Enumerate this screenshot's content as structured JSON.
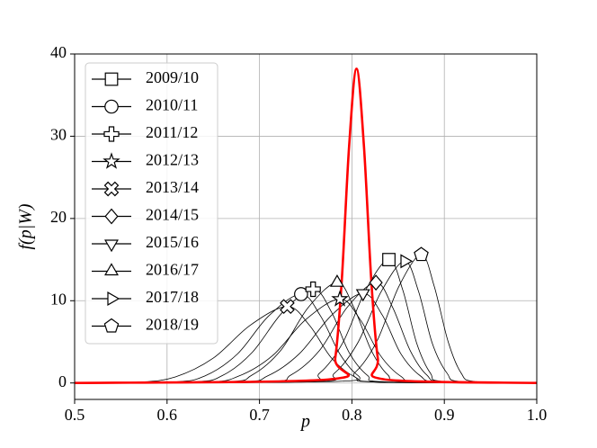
{
  "chart_data": {
    "type": "line",
    "xlabel": "p",
    "ylabel": "f(p|W)",
    "xlim": [
      0.5,
      1.0
    ],
    "ylim": [
      -2,
      40
    ],
    "xticks": [
      0.5,
      0.6,
      0.7,
      0.8,
      0.9,
      {
        "value": 1.0,
        "label": "1.0"
      }
    ],
    "yticks": [
      0,
      10,
      20,
      30,
      40
    ],
    "grid": true,
    "legend": "upper left",
    "series": [
      {
        "name": "2009/10",
        "color": "#000000",
        "marker": "square",
        "x": [
          0.5,
          0.74,
          0.765,
          0.79,
          0.815,
          0.84,
          0.855,
          0.87,
          0.885,
          0.9,
          1.0
        ],
        "values": [
          0,
          0.17,
          1.19,
          4.87,
          11.32,
          15.0,
          11.32,
          4.87,
          1.19,
          0.17,
          0
        ]
      },
      {
        "name": "2010/11",
        "color": "#000000",
        "marker": "circle",
        "x": [
          0.5,
          0.606,
          0.641,
          0.676,
          0.71,
          0.745,
          0.766,
          0.787,
          0.807,
          0.828,
          1.0
        ],
        "values": [
          0,
          0.12,
          0.86,
          3.51,
          8.15,
          10.8,
          8.15,
          3.51,
          0.86,
          0.12,
          0
        ]
      },
      {
        "name": "2011/12",
        "color": "#000000",
        "marker": "plus",
        "x": [
          0.5,
          0.627,
          0.66,
          0.692,
          0.725,
          0.758,
          0.778,
          0.797,
          0.817,
          0.837,
          1.0
        ],
        "values": [
          0,
          0.13,
          0.91,
          3.7,
          8.6,
          11.4,
          8.6,
          3.7,
          0.91,
          0.13,
          0
        ]
      },
      {
        "name": "2012/13",
        "color": "#000000",
        "marker": "star",
        "x": [
          0.5,
          0.64,
          0.677,
          0.714,
          0.75,
          0.787,
          0.809,
          0.831,
          0.853,
          0.875,
          1.0
        ],
        "values": [
          0,
          0.11,
          0.81,
          3.31,
          7.7,
          10.2,
          7.7,
          3.31,
          0.81,
          0.11,
          0
        ]
      },
      {
        "name": "2013/14",
        "color": "#000000",
        "marker": "x",
        "x": [
          0.5,
          0.569,
          0.609,
          0.65,
          0.69,
          0.73,
          0.754,
          0.778,
          0.803,
          0.827,
          1.0
        ],
        "values": [
          0,
          0.1,
          0.74,
          3.02,
          7.02,
          9.3,
          7.02,
          3.02,
          0.74,
          0.1,
          0
        ]
      },
      {
        "name": "2014/15",
        "color": "#000000",
        "marker": "diamond",
        "x": [
          0.5,
          0.703,
          0.734,
          0.765,
          0.795,
          0.826,
          0.844,
          0.863,
          0.881,
          0.9,
          1.0
        ],
        "values": [
          0,
          0.14,
          0.97,
          3.96,
          9.21,
          12.2,
          9.21,
          3.96,
          0.97,
          0.14,
          0
        ]
      },
      {
        "name": "2015/16",
        "color": "#000000",
        "marker": "triangle_down",
        "x": [
          0.5,
          0.675,
          0.709,
          0.743,
          0.778,
          0.812,
          0.833,
          0.853,
          0.874,
          0.895,
          1.0
        ],
        "values": [
          0,
          0.12,
          0.87,
          3.54,
          8.23,
          10.9,
          8.23,
          3.54,
          0.87,
          0.12,
          0
        ]
      },
      {
        "name": "2016/17",
        "color": "#000000",
        "marker": "triangle_up",
        "x": [
          0.5,
          0.661,
          0.692,
          0.723,
          0.753,
          0.784,
          0.802,
          0.821,
          0.839,
          0.858,
          1.0
        ],
        "values": [
          0,
          0.14,
          0.97,
          3.96,
          9.21,
          12.2,
          9.21,
          3.96,
          0.97,
          0.14,
          0
        ]
      },
      {
        "name": "2017/18",
        "color": "#000000",
        "marker": "triangle_right",
        "x": [
          0.5,
          0.756,
          0.781,
          0.806,
          0.832,
          0.857,
          0.872,
          0.887,
          0.903,
          0.918,
          1.0
        ],
        "values": [
          0,
          0.16,
          1.18,
          4.81,
          11.17,
          14.8,
          11.17,
          4.81,
          1.18,
          0.16,
          0
        ]
      },
      {
        "name": "2018/19",
        "color": "#000000",
        "marker": "pentagon",
        "x": [
          0.5,
          0.779,
          0.803,
          0.827,
          0.851,
          0.875,
          0.889,
          0.904,
          0.918,
          0.933,
          1.0
        ],
        "values": [
          0,
          0.17,
          1.24,
          5.07,
          11.78,
          15.6,
          11.78,
          5.07,
          1.24,
          0.17,
          0
        ]
      },
      {
        "color": "#ff0000",
        "x": [
          0.5,
          0.774,
          0.782,
          0.789,
          0.797,
          0.805,
          0.813,
          0.821,
          0.828,
          0.836,
          1.0
        ],
        "values": [
          0,
          0.42,
          3.04,
          12.4,
          28.83,
          38.2,
          28.83,
          12.4,
          3.04,
          0.42,
          0
        ]
      }
    ]
  }
}
